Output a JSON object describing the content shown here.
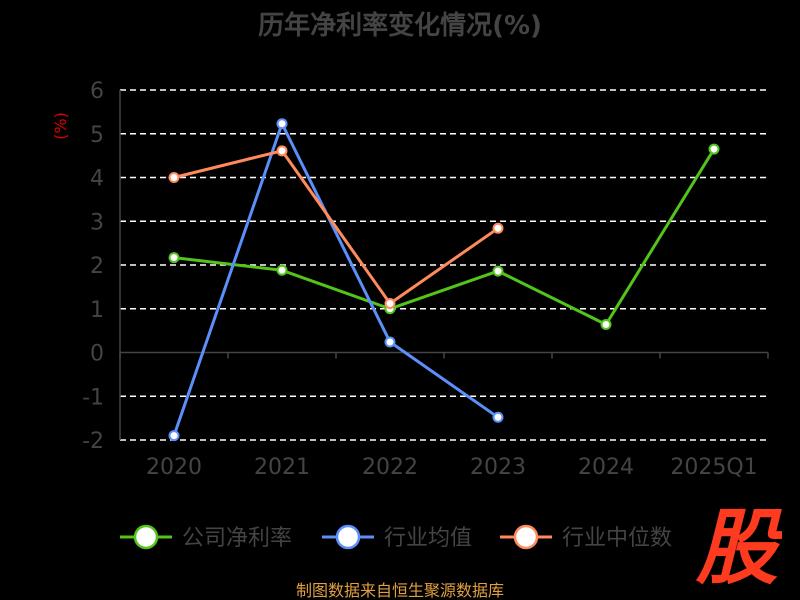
{
  "chart_data": {
    "type": "line",
    "title": "历年净利率变化情况(%)",
    "y_unit_label": "(%)",
    "categories": [
      "2020",
      "2021",
      "2022",
      "2023",
      "2024",
      "2025Q1"
    ],
    "ylim": [
      -2,
      6
    ],
    "yticks": [
      6,
      5,
      4,
      3,
      2,
      1,
      0,
      -1,
      -2
    ],
    "grid": true,
    "legend_position": "bottom",
    "series": [
      {
        "name": "公司净利率",
        "color": "#52c41a",
        "values": [
          2.17,
          1.88,
          1.0,
          1.86,
          0.64,
          4.65
        ]
      },
      {
        "name": "行业均值",
        "color": "#5b8ff9",
        "values": [
          -1.9,
          5.23,
          0.24,
          -1.48,
          null,
          null
        ]
      },
      {
        "name": "行业中位数",
        "color": "#ff8a5b",
        "values": [
          4.0,
          4.61,
          1.12,
          2.84,
          null,
          null
        ]
      }
    ]
  },
  "footer": {
    "source": "制图数据来自恒生聚源数据库"
  },
  "logo": {
    "char": "股",
    "color": "#ff3b1f"
  }
}
